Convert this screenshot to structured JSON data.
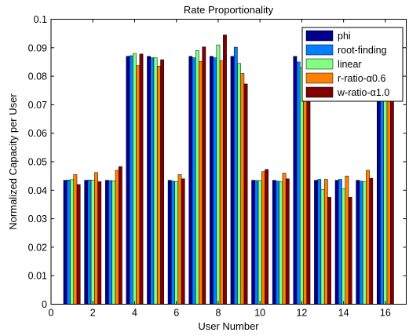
{
  "chart_data": {
    "type": "bar",
    "title": "Rate Proportionality",
    "xlabel": "User Number",
    "ylabel": "Normalized Capacity per User",
    "xlim": [
      0,
      17
    ],
    "ylim": [
      0,
      0.1
    ],
    "xticks": [
      0,
      2,
      4,
      6,
      8,
      10,
      12,
      14,
      16
    ],
    "yticks": [
      0,
      0.01,
      0.02,
      0.03,
      0.04,
      0.05,
      0.06,
      0.07,
      0.08,
      0.09,
      0.1
    ],
    "x_tick_labels": [
      "0",
      "2",
      "4",
      "6",
      "8",
      "10",
      "12",
      "14",
      "16"
    ],
    "y_tick_labels": [
      "0",
      "0.01",
      "0.02",
      "0.03",
      "0.04",
      "0.05",
      "0.06",
      "0.07",
      "0.08",
      "0.09",
      "0.1"
    ],
    "categories": [
      1,
      2,
      3,
      4,
      5,
      6,
      7,
      8,
      9,
      10,
      11,
      12,
      13,
      14,
      15,
      16
    ],
    "grid": false,
    "legend_position": "top-right",
    "series": [
      {
        "name": "phi",
        "color": "#00008f",
        "values": [
          0.0435,
          0.0435,
          0.0435,
          0.087,
          0.087,
          0.0435,
          0.087,
          0.087,
          0.087,
          0.0435,
          0.0435,
          0.087,
          0.0435,
          0.0435,
          0.0435,
          0.087
        ]
      },
      {
        "name": "root-finding",
        "color": "#0080ff",
        "values": [
          0.0436,
          0.0436,
          0.0434,
          0.0872,
          0.0865,
          0.0432,
          0.0865,
          0.0865,
          0.0902,
          0.0434,
          0.0432,
          0.085,
          0.0438,
          0.0438,
          0.0432,
          0.085
        ]
      },
      {
        "name": "linear",
        "color": "#80ff80",
        "values": [
          0.0437,
          0.0435,
          0.0433,
          0.088,
          0.0865,
          0.043,
          0.089,
          0.091,
          0.0845,
          0.0434,
          0.043,
          0.083,
          0.0402,
          0.0405,
          0.043,
          0.083
        ]
      },
      {
        "name": "r-ratio-α0.6",
        "color": "#ff8000",
        "values": [
          0.0455,
          0.0462,
          0.047,
          0.0837,
          0.0835,
          0.0455,
          0.0852,
          0.0855,
          0.081,
          0.0465,
          0.046,
          0.081,
          0.0438,
          0.045,
          0.047,
          0.081
        ]
      },
      {
        "name": "w-ratio-α1.0",
        "color": "#800000",
        "values": [
          0.042,
          0.043,
          0.0483,
          0.0878,
          0.0858,
          0.044,
          0.0903,
          0.0945,
          0.0773,
          0.0473,
          0.044,
          0.075,
          0.0375,
          0.0375,
          0.0442,
          0.075
        ]
      }
    ]
  }
}
